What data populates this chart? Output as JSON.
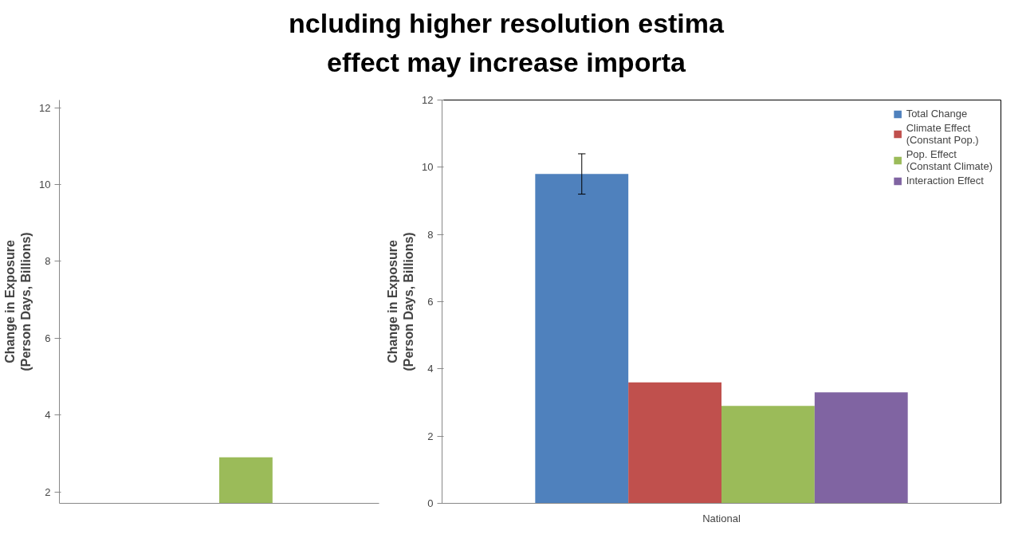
{
  "chart_data": [
    {
      "type": "bar",
      "title": "ncluding higher resolution estima\neffect may increase importa",
      "ylabel": "Change in Exposure\n(Person Days, Billions)",
      "categories": [
        null
      ],
      "ylim": [
        1.7,
        12.2
      ],
      "yticks": [
        2,
        4,
        6,
        8,
        10,
        12
      ],
      "grid": false,
      "legend": false,
      "series": [
        {
          "color": "#4f81bd",
          "values": [
            null
          ]
        },
        {
          "color": "#c0504d",
          "values": [
            null
          ]
        },
        {
          "color": "#9bbb59",
          "values": [
            2.9
          ]
        },
        {
          "color": "#8064a2",
          "values": [
            null
          ]
        }
      ]
    },
    {
      "type": "bar",
      "ylabel": "Change in Exposure\n(Person Days, Billions)",
      "categories": [
        "National"
      ],
      "ylim": [
        0,
        12
      ],
      "yticks": [
        0,
        2,
        4,
        6,
        8,
        10,
        12
      ],
      "grid": false,
      "legend": "top right",
      "series": [
        {
          "name": "Total Change",
          "color": "#4f81bd",
          "values": [
            9.8
          ],
          "errors": [
            [
              9.2,
              10.4
            ]
          ]
        },
        {
          "name": "Climate Effect\n(Constant Pop.)",
          "color": "#c0504d",
          "values": [
            3.6
          ]
        },
        {
          "name": "Pop. Effect\n(Constant Climate)",
          "color": "#9bbb59",
          "values": [
            2.9
          ]
        },
        {
          "name": "Interaction Effect",
          "color": "#8064a2",
          "values": [
            3.3
          ]
        }
      ]
    }
  ]
}
